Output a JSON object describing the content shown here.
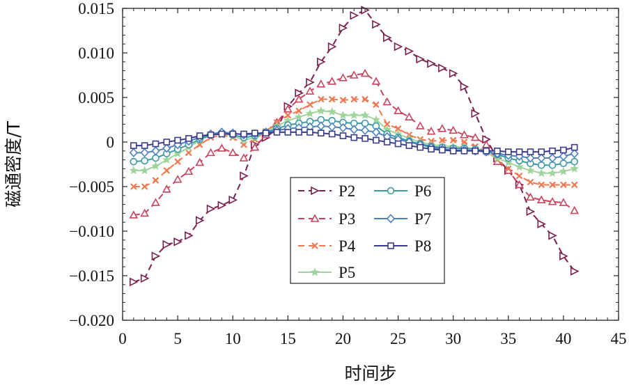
{
  "chart_data": {
    "type": "line",
    "title": "",
    "xlabel": "时间步",
    "ylabel": "磁通密度/T",
    "xlim": [
      0,
      45
    ],
    "ylim": [
      -0.02,
      0.015
    ],
    "xticks": [
      0,
      5,
      10,
      15,
      20,
      25,
      30,
      35,
      40,
      45
    ],
    "yticks": [
      -0.02,
      -0.015,
      -0.01,
      -0.005,
      0,
      0.005,
      0.01,
      0.015
    ],
    "xtick_labels": [
      "0",
      "5",
      "10",
      "15",
      "20",
      "25",
      "30",
      "35",
      "40",
      "45"
    ],
    "ytick_labels": [
      "−0.020",
      "−0.015",
      "−0.010",
      "−0.005",
      "0",
      "0.005",
      "0.010",
      "0.015"
    ],
    "grid": false,
    "legend_position": "lower-center",
    "x": [
      1,
      2,
      3,
      4,
      5,
      6,
      7,
      8,
      9,
      10,
      11,
      12,
      13,
      14,
      15,
      16,
      17,
      18,
      19,
      20,
      21,
      22,
      23,
      24,
      25,
      26,
      27,
      28,
      29,
      30,
      31,
      32,
      33,
      34,
      35,
      36,
      37,
      38,
      39,
      40,
      41
    ],
    "series": [
      {
        "name": "P2",
        "color": "#7b1e4d",
        "marker": "triangle-right",
        "dash": "dashed",
        "values": [
          -0.0157,
          -0.0153,
          -0.0128,
          -0.0115,
          -0.0112,
          -0.0105,
          -0.0088,
          -0.0075,
          -0.0071,
          -0.0065,
          -0.0038,
          -0.0003,
          0.0005,
          0.0015,
          0.004,
          0.0055,
          0.0067,
          0.009,
          0.0107,
          0.0128,
          0.0142,
          0.0148,
          0.0132,
          0.0117,
          0.0107,
          0.0102,
          0.0093,
          0.0088,
          0.0083,
          0.0077,
          0.0062,
          0.0032,
          0.0003,
          -0.0018,
          -0.0032,
          -0.0048,
          -0.0078,
          -0.0092,
          -0.0105,
          -0.0128,
          -0.0145
        ]
      },
      {
        "name": "P3",
        "color": "#c7445e",
        "marker": "triangle-up",
        "dash": "dashed",
        "values": [
          -0.0082,
          -0.008,
          -0.0068,
          -0.0053,
          -0.0042,
          -0.0033,
          -0.0023,
          -0.0012,
          -0.0007,
          -0.0012,
          -0.0018,
          -0.0006,
          0.0008,
          0.0022,
          0.0037,
          0.0048,
          0.0057,
          0.0065,
          0.0068,
          0.0072,
          0.0075,
          0.0077,
          0.0068,
          0.0045,
          0.0035,
          0.0028,
          0.0018,
          0.0012,
          0.0015,
          0.0013,
          0.0008,
          0.0005,
          -0.0003,
          -0.0022,
          -0.0032,
          -0.0048,
          -0.0062,
          -0.0065,
          -0.0067,
          -0.0068,
          -0.0077
        ]
      },
      {
        "name": "P4",
        "color": "#f07850",
        "marker": "x",
        "dash": "dashed",
        "values": [
          -0.005,
          -0.005,
          -0.0043,
          -0.0032,
          -0.0022,
          -0.0012,
          -0.0003,
          0.0005,
          0.0008,
          0.0005,
          -0.0003,
          0.0003,
          0.0012,
          0.0022,
          0.003,
          0.0035,
          0.0042,
          0.0048,
          0.0048,
          0.0047,
          0.0048,
          0.0048,
          0.0042,
          0.002,
          0.0015,
          0.0008,
          0.0003,
          0.0001,
          0.0002,
          0.0002,
          0.0,
          -0.0005,
          -0.001,
          -0.002,
          -0.003,
          -0.0038,
          -0.0045,
          -0.0048,
          -0.0048,
          -0.0048,
          -0.0048
        ]
      },
      {
        "name": "P5",
        "color": "#9fd49c",
        "marker": "star",
        "dash": "solid",
        "values": [
          -0.0032,
          -0.0032,
          -0.0027,
          -0.002,
          -0.0013,
          -0.0006,
          0.0002,
          0.0008,
          0.001,
          0.0007,
          0.0002,
          0.0005,
          0.0012,
          0.0018,
          0.0024,
          0.0028,
          0.0032,
          0.0035,
          0.0034,
          0.003,
          0.003,
          0.003,
          0.0025,
          0.0014,
          0.0009,
          0.0004,
          0.0,
          -0.0003,
          -0.0004,
          -0.0005,
          -0.0006,
          -0.0008,
          -0.0012,
          -0.0018,
          -0.0023,
          -0.0028,
          -0.0032,
          -0.0035,
          -0.0035,
          -0.0033,
          -0.003
        ]
      },
      {
        "name": "P6",
        "color": "#3a9aa0",
        "marker": "circle",
        "dash": "solid",
        "values": [
          -0.0022,
          -0.0021,
          -0.0018,
          -0.0013,
          -0.0008,
          -0.0003,
          0.0003,
          0.0008,
          0.001,
          0.0008,
          0.0005,
          0.0007,
          0.0011,
          0.0015,
          0.0019,
          0.0021,
          0.0023,
          0.0025,
          0.0024,
          0.0022,
          0.0021,
          0.0021,
          0.0018,
          0.0009,
          0.0005,
          0.0001,
          -0.0002,
          -0.0005,
          -0.0006,
          -0.0007,
          -0.0007,
          -0.0008,
          -0.001,
          -0.0014,
          -0.0018,
          -0.0021,
          -0.0024,
          -0.0026,
          -0.0026,
          -0.0024,
          -0.0022
        ]
      },
      {
        "name": "P7",
        "color": "#4c7fbf",
        "marker": "diamond",
        "dash": "solid",
        "values": [
          -0.0012,
          -0.0012,
          -0.001,
          -0.0007,
          -0.0003,
          0.0001,
          0.0005,
          0.0009,
          0.0011,
          0.001,
          0.0008,
          0.0009,
          0.0011,
          0.0013,
          0.0015,
          0.0016,
          0.0017,
          0.0018,
          0.0017,
          0.0016,
          0.0014,
          0.0013,
          0.0011,
          0.0006,
          0.0003,
          0.0,
          -0.0003,
          -0.0006,
          -0.0008,
          -0.0009,
          -0.0009,
          -0.001,
          -0.0011,
          -0.0013,
          -0.0015,
          -0.0016,
          -0.0018,
          -0.0018,
          -0.0018,
          -0.0016,
          -0.0013
        ]
      },
      {
        "name": "P8",
        "color": "#3a3b8c",
        "marker": "square",
        "dash": "solid",
        "values": [
          -0.0004,
          -0.0004,
          -0.0002,
          0.0,
          0.0002,
          0.0004,
          0.0007,
          0.0008,
          0.0009,
          0.0009,
          0.0009,
          0.001,
          0.001,
          0.0011,
          0.0011,
          0.0011,
          0.0011,
          0.001,
          0.0009,
          0.0007,
          0.0005,
          0.0004,
          0.0002,
          0.0,
          -0.0002,
          -0.0004,
          -0.0006,
          -0.0008,
          -0.0009,
          -0.001,
          -0.001,
          -0.001,
          -0.001,
          -0.001,
          -0.0011,
          -0.0011,
          -0.0011,
          -0.0011,
          -0.001,
          -0.0009,
          -0.0006
        ]
      }
    ]
  }
}
